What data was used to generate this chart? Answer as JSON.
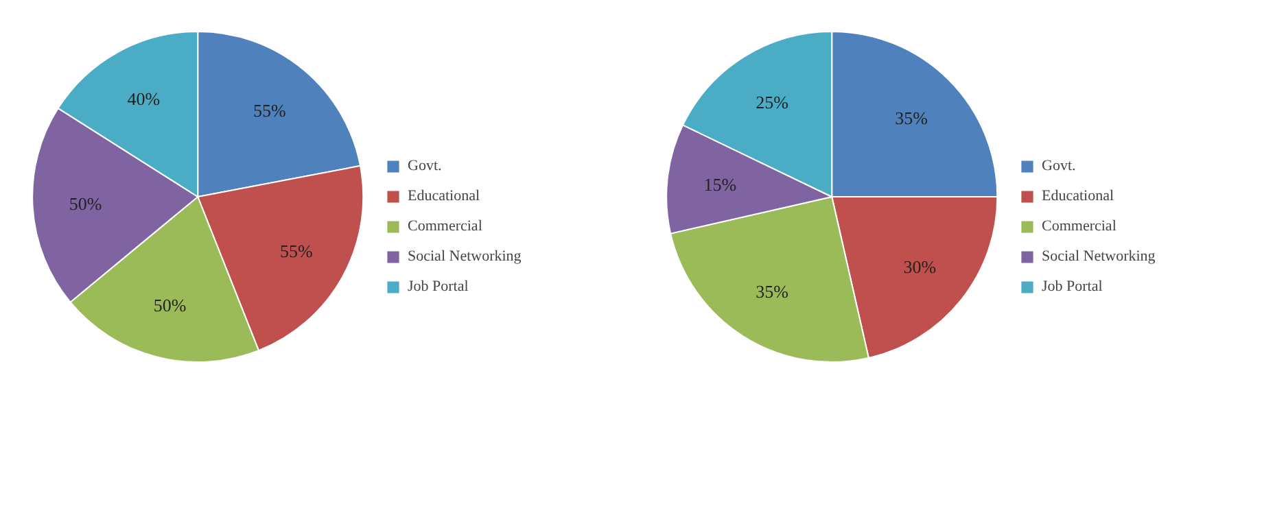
{
  "chart_data": [
    {
      "type": "pie",
      "categories": [
        "Govt.",
        "Educational",
        "Commercial",
        "Social Networking",
        "Job Portal"
      ],
      "values": [
        55,
        55,
        50,
        50,
        40
      ],
      "value_labels": [
        "55%",
        "55%",
        "50%",
        "50%",
        "40%"
      ],
      "colors": [
        "#4f81bd",
        "#c0504d",
        "#9bbb59",
        "#8064a2",
        "#4bacc6"
      ],
      "legend": "right"
    },
    {
      "type": "pie",
      "categories": [
        "Govt.",
        "Educational",
        "Commercial",
        "Social Networking",
        "Job Portal"
      ],
      "values": [
        35,
        30,
        35,
        15,
        25
      ],
      "value_labels": [
        "35%",
        "30%",
        "35%",
        "15%",
        "25%"
      ],
      "colors": [
        "#4f81bd",
        "#c0504d",
        "#9bbb59",
        "#8064a2",
        "#4bacc6"
      ],
      "legend": "right"
    }
  ]
}
